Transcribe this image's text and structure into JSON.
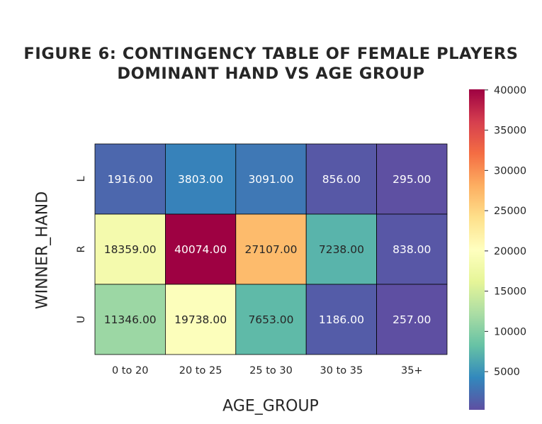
{
  "chart_data": {
    "type": "heatmap",
    "title_lines": [
      "FIGURE 6: CONTINGENCY TABLE OF FEMALE PLAYERS",
      "DOMINANT HAND VS AGE GROUP"
    ],
    "xlabel": "AGE_GROUP",
    "ylabel": "WINNER_HAND",
    "x_categories": [
      "0 to 20",
      "20 to 25",
      "25 to 30",
      "30 to 35",
      "35+"
    ],
    "y_categories": [
      "L",
      "R",
      "U"
    ],
    "values": [
      [
        1916,
        3803,
        3091,
        856,
        295
      ],
      [
        18359,
        40074,
        27107,
        7238,
        838
      ],
      [
        11346,
        19738,
        7653,
        1186,
        257
      ]
    ],
    "value_format": "2 decimals",
    "colormap": "Spectral_r",
    "colorbar": {
      "range": [
        257,
        40074
      ],
      "ticks": [
        5000,
        10000,
        15000,
        20000,
        25000,
        30000,
        35000,
        40000
      ]
    },
    "cell_border_color": "#000000"
  }
}
